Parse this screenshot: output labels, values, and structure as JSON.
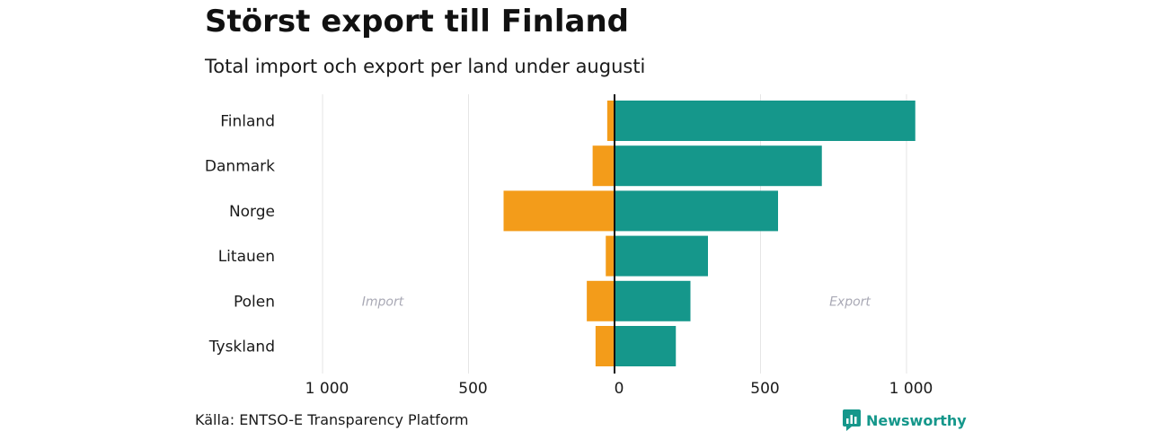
{
  "title": "Störst export till Finland",
  "subtitle": "Total import och export per land under augusti",
  "source": "Källa: ENTSO-E Transparency Platform",
  "brand": "Newsworthy",
  "colors": {
    "import": "#f39c1a",
    "export": "#15978b",
    "grid": "#e6e6e6",
    "axis": "#111111",
    "label": "#1a1a1a",
    "annotation": "#a9a9b5"
  },
  "chart_data": {
    "type": "bar",
    "orientation": "horizontal-diverging",
    "categories": [
      "Finland",
      "Danmark",
      "Norge",
      "Litauen",
      "Polen",
      "Tyskland"
    ],
    "series": [
      {
        "name": "Import",
        "values": [
          -25,
          -75,
          -380,
          -30,
          -95,
          -65
        ]
      },
      {
        "name": "Export",
        "values": [
          1030,
          710,
          560,
          320,
          260,
          210
        ]
      }
    ],
    "xlim": [
      -1000,
      1000
    ],
    "x_ticks": [
      -1000,
      -500,
      0,
      500,
      1000
    ],
    "x_tick_labels": [
      "1 000",
      "500",
      "0",
      "500",
      "1 000"
    ],
    "annotations": [
      {
        "text": "Import",
        "x": -800,
        "category": "Polen"
      },
      {
        "text": "Export",
        "x": 800,
        "category": "Polen"
      }
    ],
    "grid": true
  }
}
